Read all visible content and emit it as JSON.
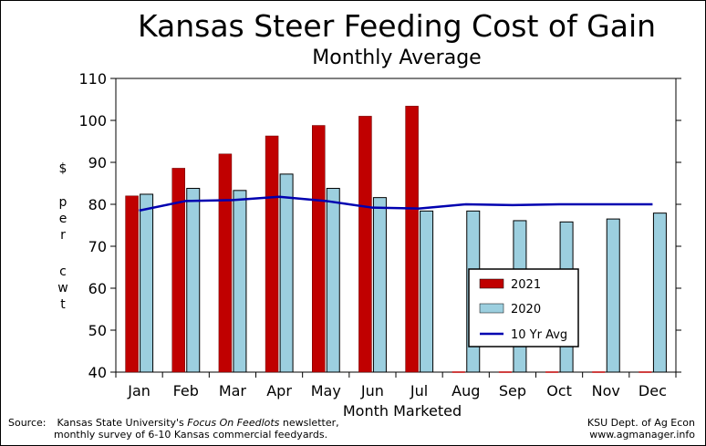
{
  "chart_data": {
    "type": "bar",
    "title": "Kansas Steer Feeding Cost of Gain",
    "subtitle": "Monthly Average",
    "ylabel": [
      "$",
      "per",
      "cwt"
    ],
    "xlabel": "Month Marketed",
    "ylim": [
      40,
      110
    ],
    "yticks": [
      40,
      50,
      60,
      70,
      80,
      90,
      100,
      110
    ],
    "grid": false,
    "legend_position": "lower-right",
    "categories": [
      "Jan",
      "Feb",
      "Mar",
      "Apr",
      "May",
      "Jun",
      "Jul",
      "Aug",
      "Sep",
      "Oct",
      "Nov",
      "Dec"
    ],
    "series": [
      {
        "name": "2021",
        "type": "bar",
        "color": "#c00000",
        "values": [
          82.0,
          88.6,
          92.0,
          96.3,
          98.8,
          101.0,
          103.4,
          null,
          null,
          null,
          null,
          null
        ]
      },
      {
        "name": "2020",
        "type": "bar",
        "color": "#9ccfdf",
        "values": [
          82.4,
          83.8,
          83.3,
          87.2,
          83.8,
          81.6,
          78.4,
          78.4,
          76.1,
          75.8,
          76.5,
          77.9
        ]
      },
      {
        "name": "10 Yr Avg",
        "type": "line",
        "color": "#0000b0",
        "values": [
          78.5,
          80.8,
          81.0,
          81.8,
          80.8,
          79.2,
          79.0,
          80.0,
          79.8,
          80.0,
          80.0,
          80.0
        ]
      }
    ]
  },
  "source": {
    "prefix": "Source:",
    "line1_pre": "Kansas State University's ",
    "line1_italic": "Focus On Feedlots",
    "line1_post": " newsletter,",
    "line2": "monthly survey of 6-10 Kansas commercial feedyards."
  },
  "credit": {
    "line1": "KSU Dept. of Ag Econ",
    "line2": "www.agmanager.info"
  }
}
